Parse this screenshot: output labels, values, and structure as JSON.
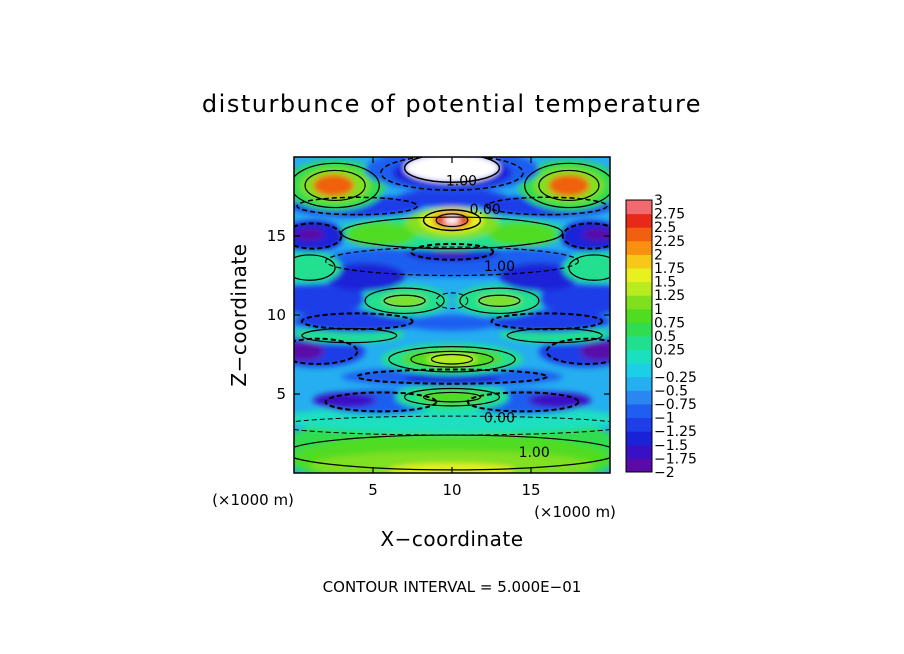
{
  "chart_data": {
    "type": "heatmap",
    "title": "disturbunce of potential temperature",
    "xlabel": "X−coordinate",
    "ylabel": "Z−coordinate",
    "x_unit": "(×1000 m)",
    "y_unit": "(×1000 m)",
    "xlim": [
      0,
      20
    ],
    "ylim": [
      0,
      20
    ],
    "x_ticks": [
      "5",
      "10",
      "15"
    ],
    "y_ticks": [
      "5",
      "10",
      "15"
    ],
    "x_tick_values": [
      5,
      10,
      15
    ],
    "y_tick_values": [
      5,
      10,
      15
    ],
    "footer": "CONTOUR INTERVAL = 5.000E−01",
    "colorbar": {
      "range": [
        -2,
        3
      ],
      "labels": [
        "3",
        "2.75",
        "2.5",
        "2.25",
        "2",
        "1.75",
        "1.5",
        "1.25",
        "1",
        "0.75",
        "0.5",
        "0.25",
        "0",
        "−0.25",
        "−0.5",
        "−0.75",
        "−1",
        "−1.25",
        "−1.5",
        "−1.75",
        "−2"
      ],
      "colors": [
        {
          "value": -2.0,
          "color": "#5a0aa8"
        },
        {
          "value": -1.75,
          "color": "#3a10c4"
        },
        {
          "value": -1.5,
          "color": "#1a22d8"
        },
        {
          "value": -1.25,
          "color": "#1e3ee8"
        },
        {
          "value": -1.0,
          "color": "#1f5ef0"
        },
        {
          "value": -0.75,
          "color": "#2a86f0"
        },
        {
          "value": -0.5,
          "color": "#25aef0"
        },
        {
          "value": -0.25,
          "color": "#1ccfe6"
        },
        {
          "value": 0.0,
          "color": "#1ae0c0"
        },
        {
          "value": 0.25,
          "color": "#20e090"
        },
        {
          "value": 0.5,
          "color": "#30dc50"
        },
        {
          "value": 0.75,
          "color": "#50dc20"
        },
        {
          "value": 1.0,
          "color": "#80e020"
        },
        {
          "value": 1.25,
          "color": "#b8ec20"
        },
        {
          "value": 1.5,
          "color": "#e8f020"
        },
        {
          "value": 1.75,
          "color": "#f8c818"
        },
        {
          "value": 2.0,
          "color": "#f89010"
        },
        {
          "value": 2.25,
          "color": "#f06010"
        },
        {
          "value": 2.5,
          "color": "#e82818"
        },
        {
          "value": 2.75,
          "color": "#f06a70"
        },
        {
          "value": 3.0,
          "color": "#f8a8b0"
        }
      ],
      "above_range_color": "#ffffff"
    },
    "contour_labels": [
      {
        "text": "1.00",
        "x": 10.6,
        "z": 18.2
      },
      {
        "text": "0.00",
        "x": 12.1,
        "z": 16.4
      },
      {
        "text": "1.00",
        "x": 13.0,
        "z": 12.8
      },
      {
        "text": "0.00",
        "x": 13.0,
        "z": 3.2
      },
      {
        "text": "1.00",
        "x": 15.2,
        "z": 1.0
      }
    ],
    "features": [
      {
        "x": 2.5,
        "z": 18.2,
        "value": 2.4
      },
      {
        "x": 17.4,
        "z": 18.2,
        "value": 2.4
      },
      {
        "x": 10.0,
        "z": 18.8,
        "value": 3.2
      },
      {
        "x": 10.0,
        "z": 16.0,
        "value": 2.7
      },
      {
        "x": 10.0,
        "z": 14.1,
        "value": -2.1
      },
      {
        "x": 1.0,
        "z": 15.1,
        "value": -2.1
      },
      {
        "x": 19.2,
        "z": 15.1,
        "value": -2.1
      },
      {
        "x": 7.0,
        "z": 10.9,
        "value": 1.0
      },
      {
        "x": 13.0,
        "z": 10.9,
        "value": 1.0
      },
      {
        "x": 10.0,
        "z": 7.1,
        "value": 1.3
      },
      {
        "x": 10.0,
        "z": 4.8,
        "value": 0.9
      },
      {
        "x": 0.6,
        "z": 7.7,
        "value": -1.9
      },
      {
        "x": 19.4,
        "z": 7.7,
        "value": -1.9
      },
      {
        "x": 10.0,
        "z": 0.6,
        "value": 1.5
      }
    ]
  }
}
